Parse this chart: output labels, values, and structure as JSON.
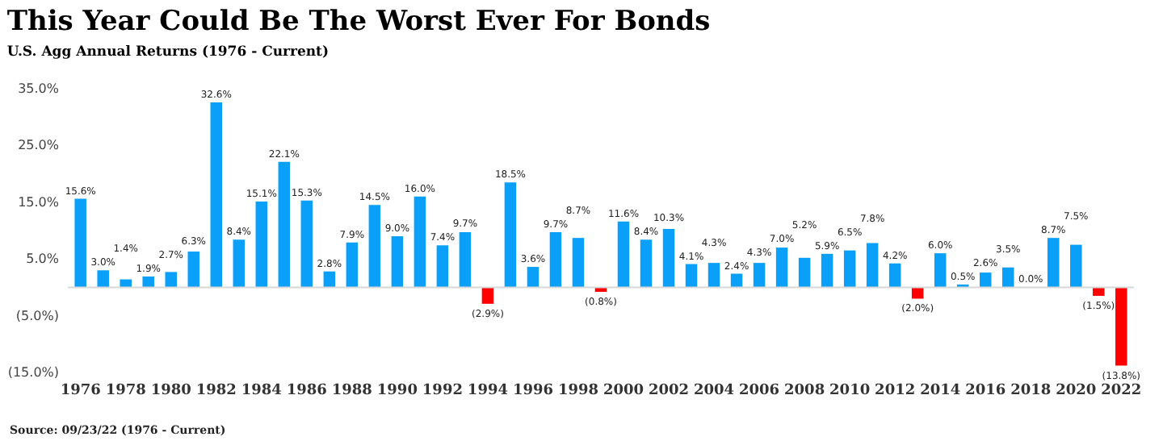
{
  "chart_data": {
    "type": "bar",
    "title": "This Year Could Be The Worst Ever For Bonds",
    "subtitle": "U.S. Agg Annual Returns (1976 - Current)",
    "annotations": [
      "Source: 09/23/22 (1976 - Current)"
    ],
    "categories": [
      "1976",
      null,
      "1978",
      null,
      "1980",
      null,
      "1982",
      null,
      "1984",
      null,
      "1986",
      null,
      "1988",
      null,
      "1990",
      null,
      "1992",
      null,
      "1994",
      null,
      "1996",
      null,
      "1998",
      null,
      "2000",
      null,
      "2002",
      null,
      "2004",
      null,
      "2006",
      null,
      "2008",
      null,
      "2010",
      null,
      "2012",
      null,
      "2014",
      null,
      "2016",
      null,
      "2018",
      null,
      "2020",
      null,
      "2022"
    ],
    "values": [
      15.6,
      3.0,
      1.4,
      1.9,
      2.7,
      6.3,
      32.6,
      8.4,
      15.1,
      22.1,
      15.3,
      2.8,
      7.9,
      14.5,
      9.0,
      16.0,
      7.4,
      9.7,
      -2.9,
      18.5,
      3.6,
      9.7,
      8.7,
      -0.8,
      11.6,
      8.4,
      10.3,
      4.1,
      4.3,
      2.4,
      4.3,
      7.0,
      5.2,
      5.9,
      6.5,
      7.8,
      4.2,
      -2.0,
      6.0,
      0.5,
      2.6,
      3.5,
      0.0,
      8.7,
      7.5,
      -1.5,
      -13.8
    ],
    "value_labels": [
      "15.6%",
      "3.0%",
      "1.4%",
      "1.9%",
      "2.7%",
      "6.3%",
      "32.6%",
      "8.4%",
      "15.1%",
      "22.1%",
      "15.3%",
      "2.8%",
      "7.9%",
      "14.5%",
      "9.0%",
      "16.0%",
      "7.4%",
      "9.7%",
      "(2.9%)",
      "18.5%",
      "3.6%",
      "9.7%",
      "8.7%",
      "(0.8%)",
      "11.6%",
      "8.4%",
      "10.3%",
      "4.1%",
      "4.3%",
      "2.4%",
      "4.3%",
      "7.0%",
      "5.2%",
      "5.9%",
      "6.5%",
      "7.8%",
      "4.2%",
      "(2.0%)",
      "6.0%",
      "0.5%",
      "2.6%",
      "3.5%",
      "0.0%",
      "8.7%",
      "7.5%",
      "(1.5%)",
      "(13.8%)"
    ],
    "colors": [
      "#0aa0fa",
      "#0aa0fa",
      "#0aa0fa",
      "#0aa0fa",
      "#0aa0fa",
      "#0aa0fa",
      "#0aa0fa",
      "#0aa0fa",
      "#0aa0fa",
      "#0aa0fa",
      "#0aa0fa",
      "#0aa0fa",
      "#0aa0fa",
      "#0aa0fa",
      "#0aa0fa",
      "#0aa0fa",
      "#0aa0fa",
      "#0aa0fa",
      "#ff0000",
      "#0aa0fa",
      "#0aa0fa",
      "#0aa0fa",
      "#0aa0fa",
      "#ff0000",
      "#0aa0fa",
      "#0aa0fa",
      "#0aa0fa",
      "#0aa0fa",
      "#0aa0fa",
      "#0aa0fa",
      "#0aa0fa",
      "#0aa0fa",
      "#0aa0fa",
      "#0aa0fa",
      "#0aa0fa",
      "#0aa0fa",
      "#0aa0fa",
      "#ff0000",
      "#0aa0fa",
      "#0aa0fa",
      "#0aa0fa",
      "#0aa0fa",
      "#0aa0fa",
      "#0aa0fa",
      "#0aa0fa",
      "#ff0000",
      "#ff0000"
    ],
    "ylim": [
      -15,
      35
    ],
    "yticks": [
      {
        "value": -15,
        "label": "(15.0%)"
      },
      {
        "value": -5,
        "label": "(5.0%)"
      },
      {
        "value": 5,
        "label": "5.0%"
      },
      {
        "value": 15,
        "label": "15.0%"
      },
      {
        "value": 25,
        "label": "25.0%"
      },
      {
        "value": 35,
        "label": "35.0%"
      }
    ],
    "grid": false
  }
}
